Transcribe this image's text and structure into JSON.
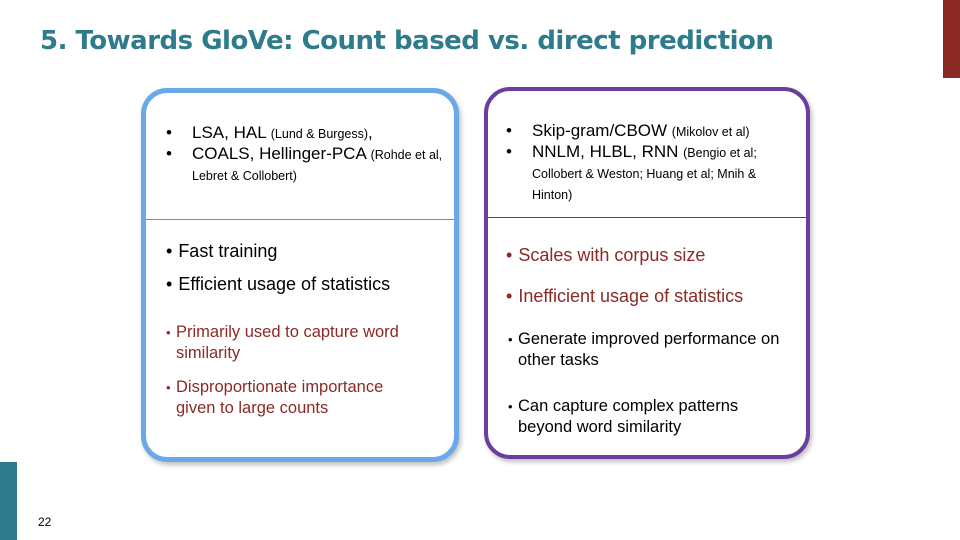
{
  "slide": {
    "title": "5. Towards GloVe: Count based vs. direct prediction",
    "page_number": "22"
  },
  "left_panel": {
    "methods": [
      {
        "main": "LSA, HAL ",
        "cite": "(Lund & Burgess)",
        "tail": ","
      },
      {
        "main": "COALS, Hellinger-PCA ",
        "cite": "(Rohde et al, Lebret & Collobert)",
        "tail": ""
      }
    ],
    "pros": [
      "Fast training",
      "Efficient usage of statistics"
    ],
    "cons": [
      "Primarily used to capture word similarity",
      "Disproportionate importance given to large counts"
    ]
  },
  "right_panel": {
    "methods": [
      {
        "main": "Skip-gram/CBOW ",
        "cite": "(Mikolov et al)",
        "tail": ""
      },
      {
        "main": "NNLM, HLBL, RNN ",
        "cite": "(Bengio et al; Collobert & Weston; Huang et al; Mnih & Hinton)",
        "tail": ""
      }
    ],
    "cons": [
      "Scales with corpus size",
      "Inefficient usage of statistics"
    ],
    "pros": [
      "Generate improved performance on other tasks",
      "Can capture complex patterns beyond word similarity"
    ]
  },
  "bullet_glyphs": {
    "main": "•",
    "small": "•"
  },
  "colors": {
    "title": "#2e7b8c",
    "accent_red": "#8b2a25",
    "accent_teal": "#2e7b8c",
    "left_border": "#6aa9e9",
    "right_border": "#6a3e9e"
  }
}
